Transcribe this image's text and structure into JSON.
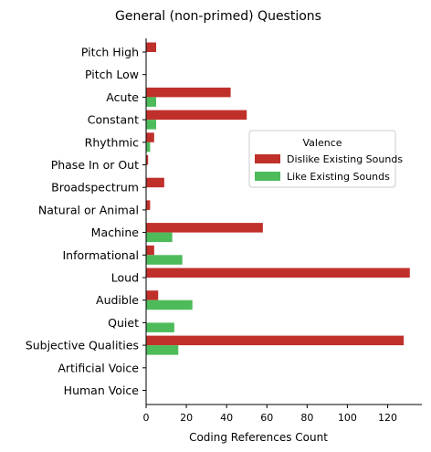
{
  "chart_data": {
    "type": "bar",
    "orientation": "horizontal",
    "title": "General (non-primed) Questions",
    "xlabel": "Coding References Count",
    "ylabel": "",
    "xlim": [
      0,
      137
    ],
    "xticks": [
      0,
      20,
      40,
      60,
      80,
      100,
      120
    ],
    "categories": [
      "Pitch High",
      "Pitch Low",
      "Acute",
      "Constant",
      "Rhythmic",
      "Phase In or Out",
      "Broadspectrum",
      "Natural or Animal",
      "Machine",
      "Informational",
      "Loud",
      "Audible",
      "Quiet",
      "Subjective Qualities",
      "Artificial Voice",
      "Human Voice"
    ],
    "legend": {
      "title": "Valence",
      "placement": "center-right"
    },
    "series": [
      {
        "name": "Dislike Existing Sounds",
        "color": "#c0302b",
        "values": [
          5,
          0,
          42,
          50,
          4,
          1,
          9,
          2,
          58,
          4,
          131,
          6,
          0,
          128,
          0,
          0
        ]
      },
      {
        "name": "Like Existing Sounds",
        "color": "#4dbb5a",
        "values": [
          0,
          0,
          5,
          5,
          2,
          0,
          0,
          0,
          13,
          18,
          0,
          23,
          14,
          16,
          0,
          0
        ]
      }
    ]
  }
}
